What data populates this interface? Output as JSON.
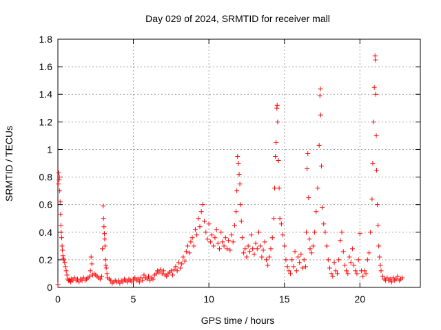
{
  "chart_data": {
    "type": "scatter",
    "title": "Day 029 of 2024, SRMTID for receiver mall",
    "xlabel": "GPS time / hours",
    "ylabel": "SRMTID / TECUs",
    "xlim": [
      0,
      24
    ],
    "ylim": [
      0,
      1.8
    ],
    "xticks": [
      0,
      5,
      10,
      15,
      20
    ],
    "xtick_labels": [
      "0",
      "5",
      "10",
      "15",
      "20"
    ],
    "yticks": [
      0,
      0.2,
      0.4,
      0.6,
      0.8,
      1.0,
      1.2,
      1.4,
      1.6,
      1.8
    ],
    "ytick_labels": [
      "0",
      "0.2",
      "0.4",
      "0.6",
      "0.8",
      "1",
      "1.2",
      "1.4",
      "1.6",
      "1.8"
    ],
    "grid": true,
    "marker": "+",
    "marker_color": "#ff0000",
    "series": [
      {
        "name": "SRMTID",
        "points": [
          [
            0.0,
            0.02
          ],
          [
            0.02,
            0.75
          ],
          [
            0.05,
            0.83
          ],
          [
            0.08,
            0.78
          ],
          [
            0.1,
            0.8
          ],
          [
            0.12,
            0.7
          ],
          [
            0.15,
            0.62
          ],
          [
            0.18,
            0.53
          ],
          [
            0.2,
            0.45
          ],
          [
            0.22,
            0.4
          ],
          [
            0.25,
            0.36
          ],
          [
            0.28,
            0.3
          ],
          [
            0.3,
            0.27
          ],
          [
            0.33,
            0.23
          ],
          [
            0.36,
            0.21
          ],
          [
            0.4,
            0.2
          ],
          [
            0.45,
            0.18
          ],
          [
            0.5,
            0.15
          ],
          [
            0.55,
            0.12
          ],
          [
            0.6,
            0.09
          ],
          [
            0.65,
            0.06
          ],
          [
            0.7,
            0.05
          ],
          [
            0.75,
            0.05
          ],
          [
            0.8,
            0.06
          ],
          [
            0.85,
            0.04
          ],
          [
            0.9,
            0.06
          ],
          [
            1.0,
            0.05
          ],
          [
            1.1,
            0.07
          ],
          [
            1.2,
            0.05
          ],
          [
            1.3,
            0.06
          ],
          [
            1.4,
            0.04
          ],
          [
            1.5,
            0.06
          ],
          [
            1.6,
            0.05
          ],
          [
            1.7,
            0.07
          ],
          [
            1.8,
            0.05
          ],
          [
            1.9,
            0.06
          ],
          [
            2.0,
            0.07
          ],
          [
            2.1,
            0.08
          ],
          [
            2.15,
            0.12
          ],
          [
            2.2,
            0.22
          ],
          [
            2.25,
            0.17
          ],
          [
            2.3,
            0.09
          ],
          [
            2.4,
            0.1
          ],
          [
            2.5,
            0.09
          ],
          [
            2.6,
            0.08
          ],
          [
            2.7,
            0.07
          ],
          [
            2.8,
            0.06
          ],
          [
            2.9,
            0.08
          ],
          [
            2.95,
            0.28
          ],
          [
            3.0,
            0.59
          ],
          [
            3.02,
            0.5
          ],
          [
            3.05,
            0.44
          ],
          [
            3.08,
            0.39
          ],
          [
            3.1,
            0.35
          ],
          [
            3.12,
            0.3
          ],
          [
            3.15,
            0.2
          ],
          [
            3.18,
            0.16
          ],
          [
            3.2,
            0.14
          ],
          [
            3.25,
            0.1
          ],
          [
            3.3,
            0.07
          ],
          [
            3.4,
            0.06
          ],
          [
            3.5,
            0.05
          ],
          [
            3.6,
            0.03
          ],
          [
            3.7,
            0.04
          ],
          [
            3.8,
            0.05
          ],
          [
            3.9,
            0.04
          ],
          [
            4.0,
            0.05
          ],
          [
            4.1,
            0.03
          ],
          [
            4.2,
            0.05
          ],
          [
            4.3,
            0.04
          ],
          [
            4.4,
            0.06
          ],
          [
            4.5,
            0.05
          ],
          [
            4.6,
            0.04
          ],
          [
            4.7,
            0.06
          ],
          [
            4.8,
            0.05
          ],
          [
            4.9,
            0.04
          ],
          [
            5.0,
            0.06
          ],
          [
            5.1,
            0.07
          ],
          [
            5.2,
            0.05
          ],
          [
            5.3,
            0.06
          ],
          [
            5.4,
            0.04
          ],
          [
            5.5,
            0.07
          ],
          [
            5.6,
            0.05
          ],
          [
            5.7,
            0.09
          ],
          [
            5.8,
            0.07
          ],
          [
            5.9,
            0.06
          ],
          [
            6.0,
            0.08
          ],
          [
            6.1,
            0.05
          ],
          [
            6.2,
            0.07
          ],
          [
            6.3,
            0.06
          ],
          [
            6.4,
            0.09
          ],
          [
            6.5,
            0.1
          ],
          [
            6.6,
            0.12
          ],
          [
            6.7,
            0.11
          ],
          [
            6.8,
            0.13
          ],
          [
            6.9,
            0.1
          ],
          [
            7.0,
            0.12
          ],
          [
            7.1,
            0.09
          ],
          [
            7.2,
            0.08
          ],
          [
            7.3,
            0.1
          ],
          [
            7.4,
            0.11
          ],
          [
            7.5,
            0.12
          ],
          [
            7.6,
            0.09
          ],
          [
            7.7,
            0.13
          ],
          [
            7.8,
            0.15
          ],
          [
            7.9,
            0.12
          ],
          [
            8.0,
            0.18
          ],
          [
            8.1,
            0.14
          ],
          [
            8.2,
            0.17
          ],
          [
            8.3,
            0.22
          ],
          [
            8.4,
            0.19
          ],
          [
            8.5,
            0.26
          ],
          [
            8.6,
            0.3
          ],
          [
            8.7,
            0.25
          ],
          [
            8.8,
            0.33
          ],
          [
            8.9,
            0.36
          ],
          [
            9.0,
            0.3
          ],
          [
            9.1,
            0.42
          ],
          [
            9.2,
            0.38
          ],
          [
            9.3,
            0.5
          ],
          [
            9.4,
            0.44
          ],
          [
            9.5,
            0.55
          ],
          [
            9.6,
            0.6
          ],
          [
            9.7,
            0.48
          ],
          [
            9.8,
            0.4
          ],
          [
            9.9,
            0.35
          ],
          [
            10.0,
            0.46
          ],
          [
            10.1,
            0.33
          ],
          [
            10.2,
            0.38
          ],
          [
            10.3,
            0.3
          ],
          [
            10.4,
            0.36
          ],
          [
            10.5,
            0.42
          ],
          [
            10.6,
            0.32
          ],
          [
            10.7,
            0.28
          ],
          [
            10.8,
            0.4
          ],
          [
            10.9,
            0.33
          ],
          [
            11.0,
            0.3
          ],
          [
            11.1,
            0.36
          ],
          [
            11.2,
            0.28
          ],
          [
            11.3,
            0.34
          ],
          [
            11.4,
            0.27
          ],
          [
            11.5,
            0.38
          ],
          [
            11.6,
            0.33
          ],
          [
            11.7,
            0.45
          ],
          [
            11.8,
            0.55
          ],
          [
            11.85,
            0.7
          ],
          [
            11.9,
            0.95
          ],
          [
            11.95,
            0.9
          ],
          [
            12.0,
            0.82
          ],
          [
            12.05,
            0.75
          ],
          [
            12.1,
            0.6
          ],
          [
            12.15,
            0.48
          ],
          [
            12.2,
            0.36
          ],
          [
            12.3,
            0.25
          ],
          [
            12.4,
            0.28
          ],
          [
            12.5,
            0.22
          ],
          [
            12.6,
            0.3
          ],
          [
            12.7,
            0.26
          ],
          [
            12.8,
            0.38
          ],
          [
            12.9,
            0.28
          ],
          [
            13.0,
            0.24
          ],
          [
            13.1,
            0.32
          ],
          [
            13.2,
            0.28
          ],
          [
            13.3,
            0.4
          ],
          [
            13.4,
            0.3
          ],
          [
            13.5,
            0.22
          ],
          [
            13.6,
            0.27
          ],
          [
            13.7,
            0.33
          ],
          [
            13.8,
            0.2
          ],
          [
            13.9,
            0.16
          ],
          [
            14.0,
            0.22
          ],
          [
            14.1,
            0.28
          ],
          [
            14.2,
            0.36
          ],
          [
            14.3,
            0.5
          ],
          [
            14.35,
            0.72
          ],
          [
            14.4,
            0.95
          ],
          [
            14.45,
            1.05
          ],
          [
            14.5,
            1.3
          ],
          [
            14.52,
            1.32
          ],
          [
            14.55,
            1.2
          ],
          [
            14.6,
            0.92
          ],
          [
            14.65,
            0.72
          ],
          [
            14.7,
            0.5
          ],
          [
            14.8,
            0.46
          ],
          [
            14.9,
            0.38
          ],
          [
            15.0,
            0.3
          ],
          [
            15.1,
            0.2
          ],
          [
            15.2,
            0.15
          ],
          [
            15.3,
            0.12
          ],
          [
            15.4,
            0.1
          ],
          [
            15.5,
            0.2
          ],
          [
            15.6,
            0.15
          ],
          [
            15.7,
            0.26
          ],
          [
            15.8,
            0.12
          ],
          [
            15.9,
            0.22
          ],
          [
            16.0,
            0.18
          ],
          [
            16.1,
            0.24
          ],
          [
            16.2,
            0.14
          ],
          [
            16.3,
            0.2
          ],
          [
            16.4,
            0.15
          ],
          [
            16.45,
            0.4
          ],
          [
            16.5,
            0.86
          ],
          [
            16.55,
            0.97
          ],
          [
            16.6,
            0.65
          ],
          [
            16.65,
            0.35
          ],
          [
            16.7,
            0.28
          ],
          [
            16.8,
            0.25
          ],
          [
            16.9,
            0.3
          ],
          [
            17.0,
            0.4
          ],
          [
            17.1,
            0.55
          ],
          [
            17.2,
            0.72
          ],
          [
            17.3,
            1.03
          ],
          [
            17.35,
            1.39
          ],
          [
            17.38,
            1.44
          ],
          [
            17.4,
            1.25
          ],
          [
            17.45,
            0.88
          ],
          [
            17.5,
            0.58
          ],
          [
            17.6,
            0.46
          ],
          [
            17.7,
            0.4
          ],
          [
            17.8,
            0.3
          ],
          [
            17.9,
            0.2
          ],
          [
            18.0,
            0.14
          ],
          [
            18.1,
            0.1
          ],
          [
            18.2,
            0.08
          ],
          [
            18.3,
            0.18
          ],
          [
            18.4,
            0.12
          ],
          [
            18.5,
            0.1
          ],
          [
            18.6,
            0.2
          ],
          [
            18.7,
            0.34
          ],
          [
            18.8,
            0.4
          ],
          [
            18.9,
            0.26
          ],
          [
            19.0,
            0.16
          ],
          [
            19.1,
            0.12
          ],
          [
            19.2,
            0.1
          ],
          [
            19.3,
            0.22
          ],
          [
            19.4,
            0.18
          ],
          [
            19.5,
            0.28
          ],
          [
            19.6,
            0.16
          ],
          [
            19.7,
            0.12
          ],
          [
            19.8,
            0.1
          ],
          [
            19.9,
            0.2
          ],
          [
            20.0,
            0.39
          ],
          [
            20.1,
            0.12
          ],
          [
            20.2,
            0.08
          ],
          [
            20.3,
            0.12
          ],
          [
            20.4,
            0.1
          ],
          [
            20.5,
            0.2
          ],
          [
            20.6,
            0.25
          ],
          [
            20.7,
            0.4
          ],
          [
            20.8,
            0.64
          ],
          [
            20.85,
            0.9
          ],
          [
            20.9,
            1.2
          ],
          [
            20.95,
            1.45
          ],
          [
            21.0,
            1.68
          ],
          [
            21.02,
            1.65
          ],
          [
            21.05,
            1.4
          ],
          [
            21.08,
            1.1
          ],
          [
            21.1,
            0.85
          ],
          [
            21.15,
            0.6
          ],
          [
            21.2,
            0.45
          ],
          [
            21.25,
            0.3
          ],
          [
            21.3,
            0.22
          ],
          [
            21.35,
            0.16
          ],
          [
            21.4,
            0.12
          ],
          [
            21.5,
            0.08
          ],
          [
            21.6,
            0.06
          ],
          [
            21.7,
            0.05
          ],
          [
            21.8,
            0.07
          ],
          [
            21.9,
            0.05
          ],
          [
            22.0,
            0.06
          ],
          [
            22.1,
            0.04
          ],
          [
            22.2,
            0.07
          ],
          [
            22.3,
            0.05
          ],
          [
            22.4,
            0.06
          ],
          [
            22.5,
            0.08
          ],
          [
            22.6,
            0.05
          ],
          [
            22.7,
            0.06
          ],
          [
            22.8,
            0.07
          ]
        ]
      }
    ]
  }
}
